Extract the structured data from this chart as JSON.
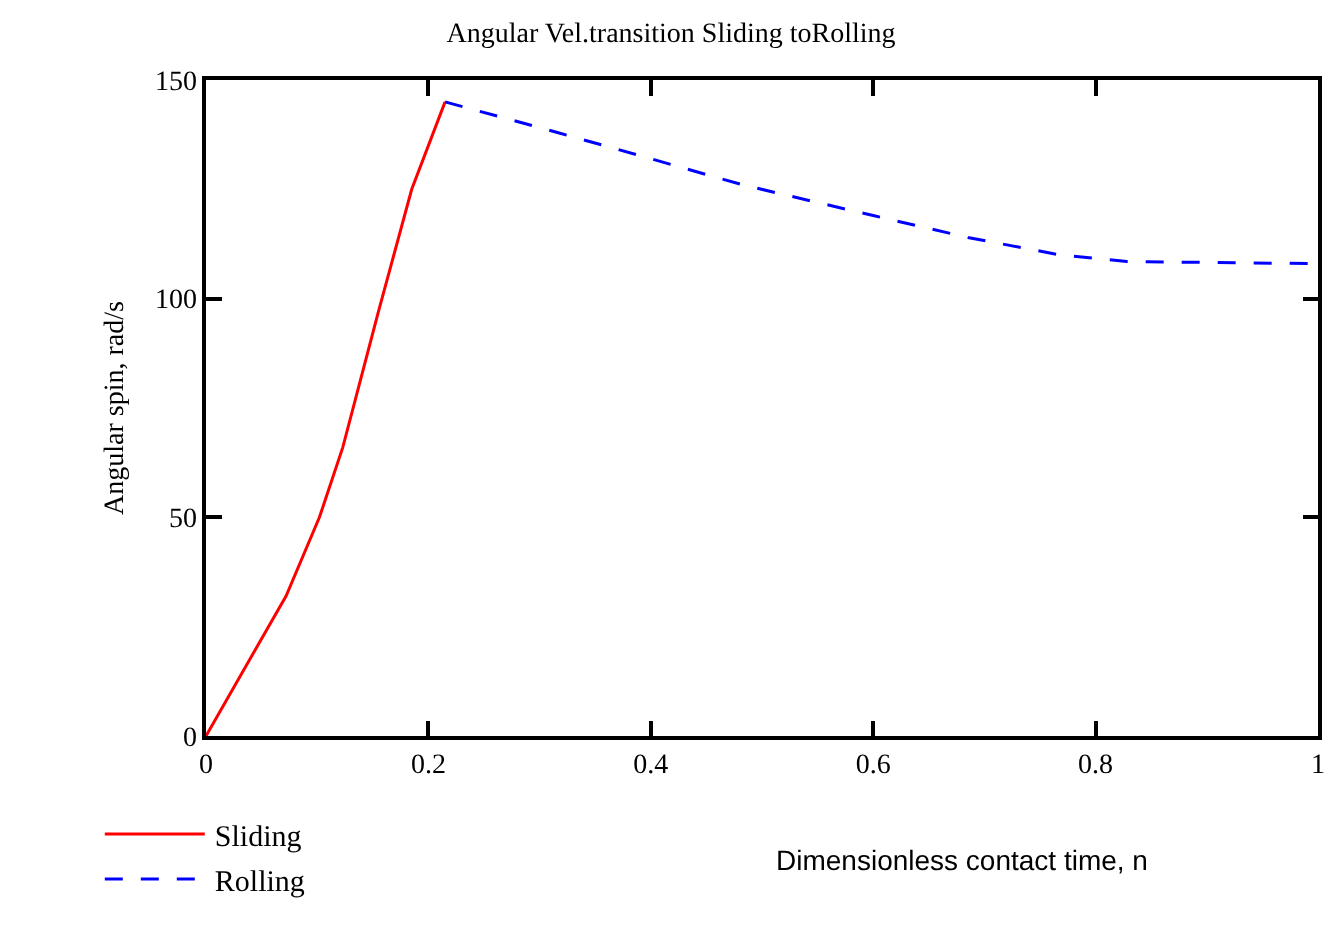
{
  "chart_data": {
    "type": "line",
    "title": "Angular Vel.transition Sliding toRolling",
    "xlabel": "Dimensionless contact time, n",
    "ylabel": "Angular spin, rad/s",
    "series": [
      {
        "name": "Sliding",
        "color": "#ff0000",
        "line_style": "solid",
        "x": [
          0,
          0.072,
          0.102,
          0.123,
          0.155,
          0.185,
          0.215
        ],
        "values": [
          0,
          32,
          50,
          66,
          97,
          125,
          145
        ]
      },
      {
        "name": "Rolling",
        "color": "#0000ff",
        "line_style": "dashed",
        "x": [
          0.215,
          0.316,
          0.4,
          0.483,
          0.6,
          0.685,
          0.768,
          0.828,
          1.0
        ],
        "values": [
          145,
          138,
          132,
          126,
          119,
          114,
          110,
          108.5,
          108
        ]
      }
    ],
    "xlim": [
      0,
      1
    ],
    "xticks": [
      0,
      0.2,
      0.4,
      0.6,
      0.8,
      1
    ],
    "ylim": [
      0,
      150
    ],
    "yticks": [
      0,
      50,
      100,
      150
    ],
    "legend": "bottom left",
    "marker": "none"
  }
}
